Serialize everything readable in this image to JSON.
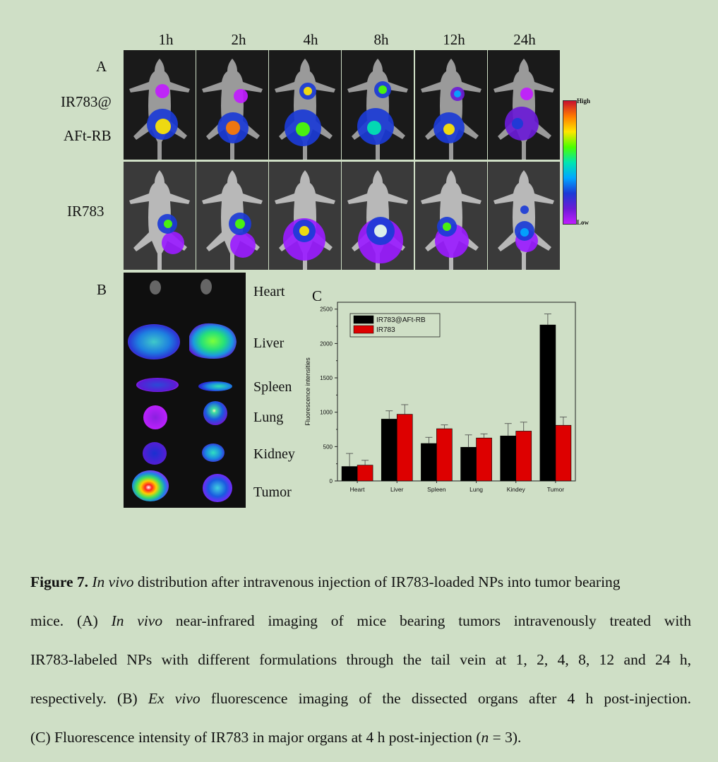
{
  "panel_a": {
    "label": "A",
    "time_points": [
      "1h",
      "2h",
      "4h",
      "8h",
      "12h",
      "24h"
    ],
    "row1_label_line1": "IR783@",
    "row1_label_line2": "AFt-RB",
    "row2_label": "IR783",
    "scale_high": "High",
    "scale_low": "Low"
  },
  "panel_b": {
    "label": "B",
    "organs": [
      "Heart",
      "Liver",
      "Spleen",
      "Lung",
      "Kidney",
      "Tumor"
    ]
  },
  "panel_c": {
    "label": "C"
  },
  "chart_data": {
    "type": "bar",
    "categories": [
      "Heart",
      "Liver",
      "Spleen",
      "Lung",
      "Kindey",
      "Tumor"
    ],
    "series": [
      {
        "name": "IR783@AFt-RB",
        "color": "#000000",
        "values": [
          210,
          900,
          545,
          490,
          655,
          2270
        ],
        "errors": [
          190,
          120,
          90,
          180,
          180,
          160
        ]
      },
      {
        "name": "IR783",
        "color": "#dd0000",
        "values": [
          230,
          970,
          760,
          625,
          725,
          810
        ],
        "errors": [
          70,
          140,
          55,
          60,
          130,
          120
        ]
      }
    ],
    "ylabel": "Fluorescence intensities",
    "ylim": [
      0,
      2600
    ],
    "yticks": [
      0,
      500,
      1000,
      1500,
      2000,
      2500
    ],
    "legend": "top-left"
  },
  "caption": {
    "fig": "Figure 7.",
    "line1_italic": "In vivo",
    "line1_rest": "distribution after intravenous injection of IR783-loaded NPs into tumor bearing",
    "line2_a": "mice. (A)",
    "line2_italic": "In vivo",
    "line2_b": "near-infrared imaging of mice bearing tumors intravenously treated with",
    "line3": "IR783-labeled NPs with different formulations through the tail vein at 1, 2, 4, 8, 12 and 24 h,",
    "line4_a": "respectively. (B)",
    "line4_italic": "Ex vivo",
    "line4_b": "fluorescence imaging of the dissected organs after 4 h post-injection.",
    "line5_a": "(C) Fluorescence intensity of IR783 in major organs at 4 h post-injection (",
    "line5_n": "n",
    "line5_b": " = 3)."
  }
}
